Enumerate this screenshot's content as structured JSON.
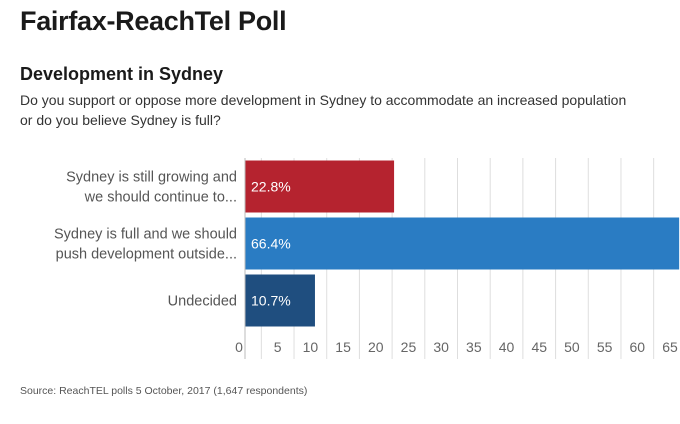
{
  "header": {
    "title": "Fairfax-ReachTel Poll",
    "subtitle": "Development in Sydney",
    "question": "Do you support or oppose more development in Sydney to accommodate an increased population or do you believe Sydney is full?"
  },
  "chart_data": {
    "type": "bar",
    "orientation": "horizontal",
    "categories": [
      [
        "Sydney is still growing and",
        "we should continue to..."
      ],
      [
        "Sydney is full and we should",
        "push development outside..."
      ],
      [
        "Undecided"
      ]
    ],
    "values": [
      22.8,
      66.4,
      10.7
    ],
    "value_labels": [
      "22.8%",
      "66.4%",
      "10.7%"
    ],
    "colors": [
      "#b5232f",
      "#2a7cc3",
      "#1f4e7f"
    ],
    "xticks": [
      0,
      5,
      10,
      15,
      20,
      25,
      30,
      35,
      40,
      45,
      50,
      55,
      60,
      65
    ],
    "xlim": [
      0,
      65
    ],
    "grid": true,
    "legend": "none"
  },
  "footer": {
    "source": "Source: ReachTEL polls 5 October, 2017 (1,647 respondents)"
  }
}
